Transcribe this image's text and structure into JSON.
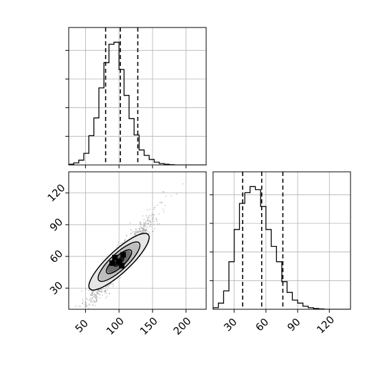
{
  "chart_data": {
    "type": "corner",
    "parameters": [
      "",
      ""
    ],
    "panels": [
      {
        "id": "hist-p1",
        "type": "histogram",
        "x_range": [
          25,
          230
        ],
        "x_ticks": [
          50,
          100,
          150,
          200
        ],
        "bin_edges": [
          25,
          32.5,
          40,
          47.5,
          55,
          62.5,
          70,
          77.5,
          85,
          92.5,
          100,
          107.5,
          115,
          122.5,
          130,
          137.5,
          145,
          152.5,
          160,
          167.5,
          175,
          182.5,
          190,
          197.5,
          205,
          212.5,
          220,
          230
        ],
        "counts": [
          0.5,
          1.5,
          3.5,
          8.5,
          21.5,
          34.5,
          56.5,
          75,
          88.5,
          90,
          70,
          51,
          34,
          22,
          11,
          7,
          4,
          2,
          1,
          0.5,
          0.2,
          0,
          0,
          0,
          0,
          0,
          0
        ],
        "quantiles": [
          80,
          102,
          128
        ]
      },
      {
        "id": "hist-p2",
        "type": "histogram",
        "x_range": [
          10,
          140
        ],
        "x_ticks": [
          30,
          60,
          90,
          120
        ],
        "bin_edges": [
          10,
          15,
          20,
          25,
          30,
          35,
          40,
          45,
          50,
          55,
          60,
          65,
          70,
          75,
          80,
          85,
          90,
          95,
          100,
          105,
          110,
          115,
          120,
          125,
          130,
          135,
          140
        ],
        "counts": [
          1,
          4,
          12,
          31,
          52,
          69,
          76,
          80,
          78,
          67,
          52,
          41,
          31,
          18,
          11,
          6,
          4,
          2,
          1,
          0.5,
          0.2,
          0,
          0,
          0,
          0,
          0
        ],
        "quantiles": [
          38,
          56,
          76
        ]
      },
      {
        "id": "scatter-p1-p2",
        "type": "2d-density",
        "x_range": [
          25,
          230
        ],
        "y_range": [
          10,
          140
        ],
        "x_ticks": [
          50,
          100,
          150,
          200
        ],
        "y_ticks": [
          30,
          60,
          90,
          120
        ],
        "center": [
          100,
          55
        ],
        "density_levels": [
          "outer",
          "middle",
          "inner",
          "peak"
        ]
      }
    ],
    "grid": true,
    "legend": "none"
  }
}
